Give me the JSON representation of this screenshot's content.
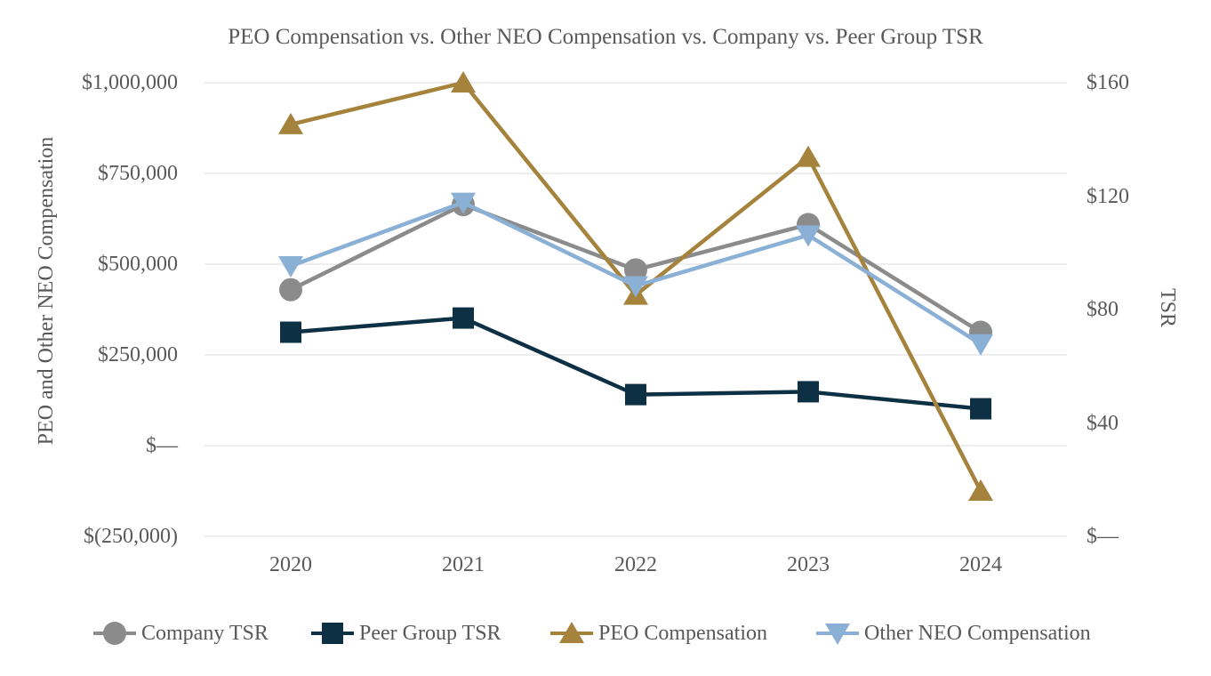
{
  "chart_data": {
    "type": "line",
    "title": "PEO Compensation vs. Other NEO Compensation vs. Company vs. Peer Group TSR",
    "categories": [
      "2020",
      "2021",
      "2022",
      "2023",
      "2024"
    ],
    "left_axis": {
      "title": "PEO and Other NEO Compensation",
      "min": -250000,
      "max": 1000000,
      "ticks": [
        {
          "label": "$1,000,000",
          "value": 1000000
        },
        {
          "label": "$750,000",
          "value": 750000
        },
        {
          "label": "$500,000",
          "value": 500000
        },
        {
          "label": "$250,000",
          "value": 250000
        },
        {
          "label": "$—",
          "value": 0
        },
        {
          "label": "$(250,000)",
          "value": -250000
        }
      ]
    },
    "right_axis": {
      "title": "TSR",
      "min": 0,
      "max": 160,
      "ticks": [
        {
          "label": "$160",
          "value": 160
        },
        {
          "label": "$120",
          "value": 120
        },
        {
          "label": "$80",
          "value": 80
        },
        {
          "label": "$40",
          "value": 40
        },
        {
          "label": "$—",
          "value": 0
        }
      ]
    },
    "series": [
      {
        "name": "Company TSR",
        "axis": "right",
        "marker": "circle",
        "color": "#8b8b8b",
        "values": [
          87,
          117,
          94,
          110,
          72
        ]
      },
      {
        "name": "Peer Group TSR",
        "axis": "right",
        "marker": "square",
        "color": "#0e3045",
        "values": [
          72,
          77,
          50,
          51,
          45
        ]
      },
      {
        "name": "PEO Compensation",
        "axis": "left",
        "marker": "triangle-up",
        "color": "#a6833c",
        "values": [
          885000,
          1000000,
          415000,
          795000,
          -125000
        ]
      },
      {
        "name": "Other NEO Compensation",
        "axis": "left",
        "marker": "triangle-down",
        "color": "#8bb0d6",
        "values": [
          495000,
          670000,
          440000,
          580000,
          280000
        ]
      }
    ],
    "legend_position": "bottom",
    "grid": true,
    "colors": {
      "text": "#595959",
      "gridline": "#e9e9e9",
      "background": "#ffffff"
    }
  }
}
